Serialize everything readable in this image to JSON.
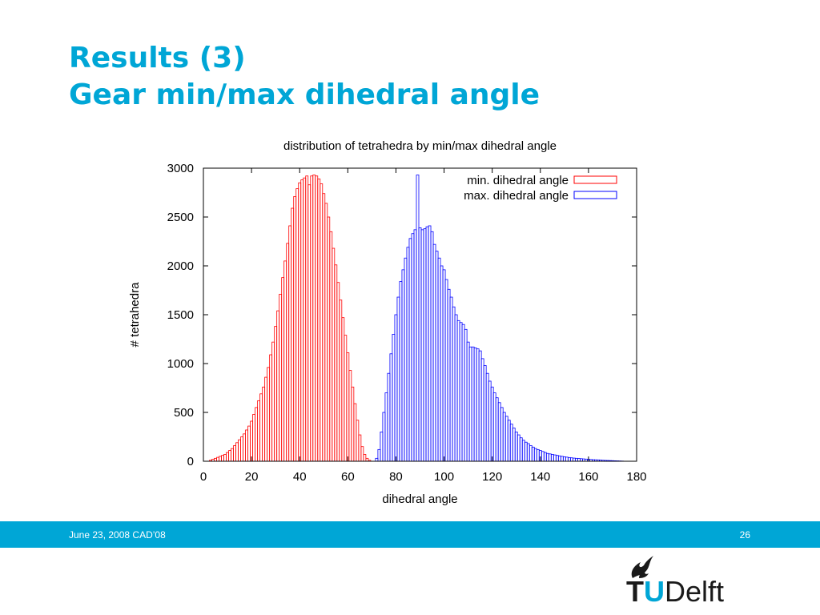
{
  "slide": {
    "title_line1": "Results (3)",
    "title_line2": "Gear min/max dihedral angle"
  },
  "footer": {
    "left": "June 23, 2008 CAD’08",
    "page_number": "26"
  },
  "logo": {
    "t": "T",
    "u": "U",
    "delft": "Delft",
    "icon": "flame-icon"
  },
  "colors": {
    "accent": "#00a6d6",
    "min_series": "#ff0000",
    "max_series": "#0000ff"
  },
  "chart_data": {
    "type": "bar",
    "title": "distribution of tetrahedra by min/max dihedral angle",
    "xlabel": "dihedral angle",
    "ylabel": "# tetrahedra",
    "xlim": [
      0,
      180
    ],
    "ylim": [
      0,
      3000
    ],
    "xticks": [
      0,
      20,
      40,
      60,
      80,
      100,
      120,
      140,
      160,
      180
    ],
    "yticks": [
      0,
      500,
      1000,
      1500,
      2000,
      2500,
      3000
    ],
    "grid": false,
    "legend": "top-right",
    "bin_width": 1,
    "series": [
      {
        "name": "min. dihedral angle",
        "color": "#ff0000",
        "x": [
          3,
          4,
          5,
          6,
          7,
          8,
          9,
          10,
          11,
          12,
          13,
          14,
          15,
          16,
          17,
          18,
          19,
          20,
          21,
          22,
          23,
          24,
          25,
          26,
          27,
          28,
          29,
          30,
          31,
          32,
          33,
          34,
          35,
          36,
          37,
          38,
          39,
          40,
          41,
          42,
          43,
          44,
          45,
          46,
          47,
          48,
          49,
          50,
          51,
          52,
          53,
          54,
          55,
          56,
          57,
          58,
          59,
          60,
          61,
          62,
          63,
          64,
          65,
          66,
          67,
          68,
          69
        ],
        "y": [
          10,
          20,
          30,
          40,
          50,
          60,
          70,
          90,
          110,
          130,
          160,
          190,
          220,
          250,
          280,
          320,
          360,
          410,
          480,
          550,
          620,
          690,
          760,
          860,
          960,
          1090,
          1220,
          1380,
          1540,
          1710,
          1880,
          2050,
          2230,
          2410,
          2590,
          2710,
          2790,
          2850,
          2880,
          2900,
          2920,
          2830,
          2920,
          2930,
          2920,
          2890,
          2840,
          2740,
          2640,
          2500,
          2350,
          2180,
          2010,
          1830,
          1650,
          1470,
          1290,
          1110,
          930,
          760,
          590,
          420,
          270,
          150,
          70,
          30,
          10
        ]
      },
      {
        "name": "max. dihedral angle",
        "color": "#0000ff",
        "x": [
          72,
          73,
          74,
          75,
          76,
          77,
          78,
          79,
          80,
          81,
          82,
          83,
          84,
          85,
          86,
          87,
          88,
          89,
          90,
          91,
          92,
          93,
          94,
          95,
          96,
          97,
          98,
          99,
          100,
          101,
          102,
          103,
          104,
          105,
          106,
          107,
          108,
          109,
          110,
          111,
          112,
          113,
          114,
          115,
          116,
          117,
          118,
          119,
          120,
          121,
          122,
          123,
          124,
          125,
          126,
          127,
          128,
          129,
          130,
          131,
          132,
          133,
          134,
          135,
          136,
          137,
          138,
          139,
          140,
          141,
          142,
          143,
          144,
          145,
          146,
          147,
          148,
          149,
          150,
          151,
          152,
          153,
          154,
          155,
          156,
          157,
          158,
          159,
          160,
          161,
          162,
          163,
          164,
          165,
          166,
          167,
          168,
          169,
          170,
          171,
          172,
          173,
          174
        ],
        "y": [
          30,
          120,
          300,
          500,
          700,
          900,
          1100,
          1300,
          1500,
          1680,
          1840,
          1960,
          2080,
          2190,
          2280,
          2330,
          2370,
          2930,
          2390,
          2370,
          2380,
          2400,
          2410,
          2350,
          2220,
          2150,
          2080,
          2000,
          1960,
          1860,
          1760,
          1680,
          1580,
          1500,
          1440,
          1420,
          1400,
          1350,
          1220,
          1170,
          1170,
          1160,
          1150,
          1130,
          1050,
          980,
          900,
          820,
          760,
          700,
          650,
          600,
          550,
          500,
          460,
          420,
          380,
          340,
          300,
          270,
          240,
          215,
          195,
          180,
          160,
          145,
          130,
          120,
          110,
          100,
          90,
          80,
          75,
          70,
          65,
          60,
          55,
          50,
          46,
          42,
          38,
          35,
          32,
          30,
          28,
          26,
          24,
          22,
          20,
          18,
          16,
          15,
          14,
          12,
          10,
          9,
          8,
          7,
          6,
          5,
          4,
          3,
          2
        ]
      }
    ]
  }
}
